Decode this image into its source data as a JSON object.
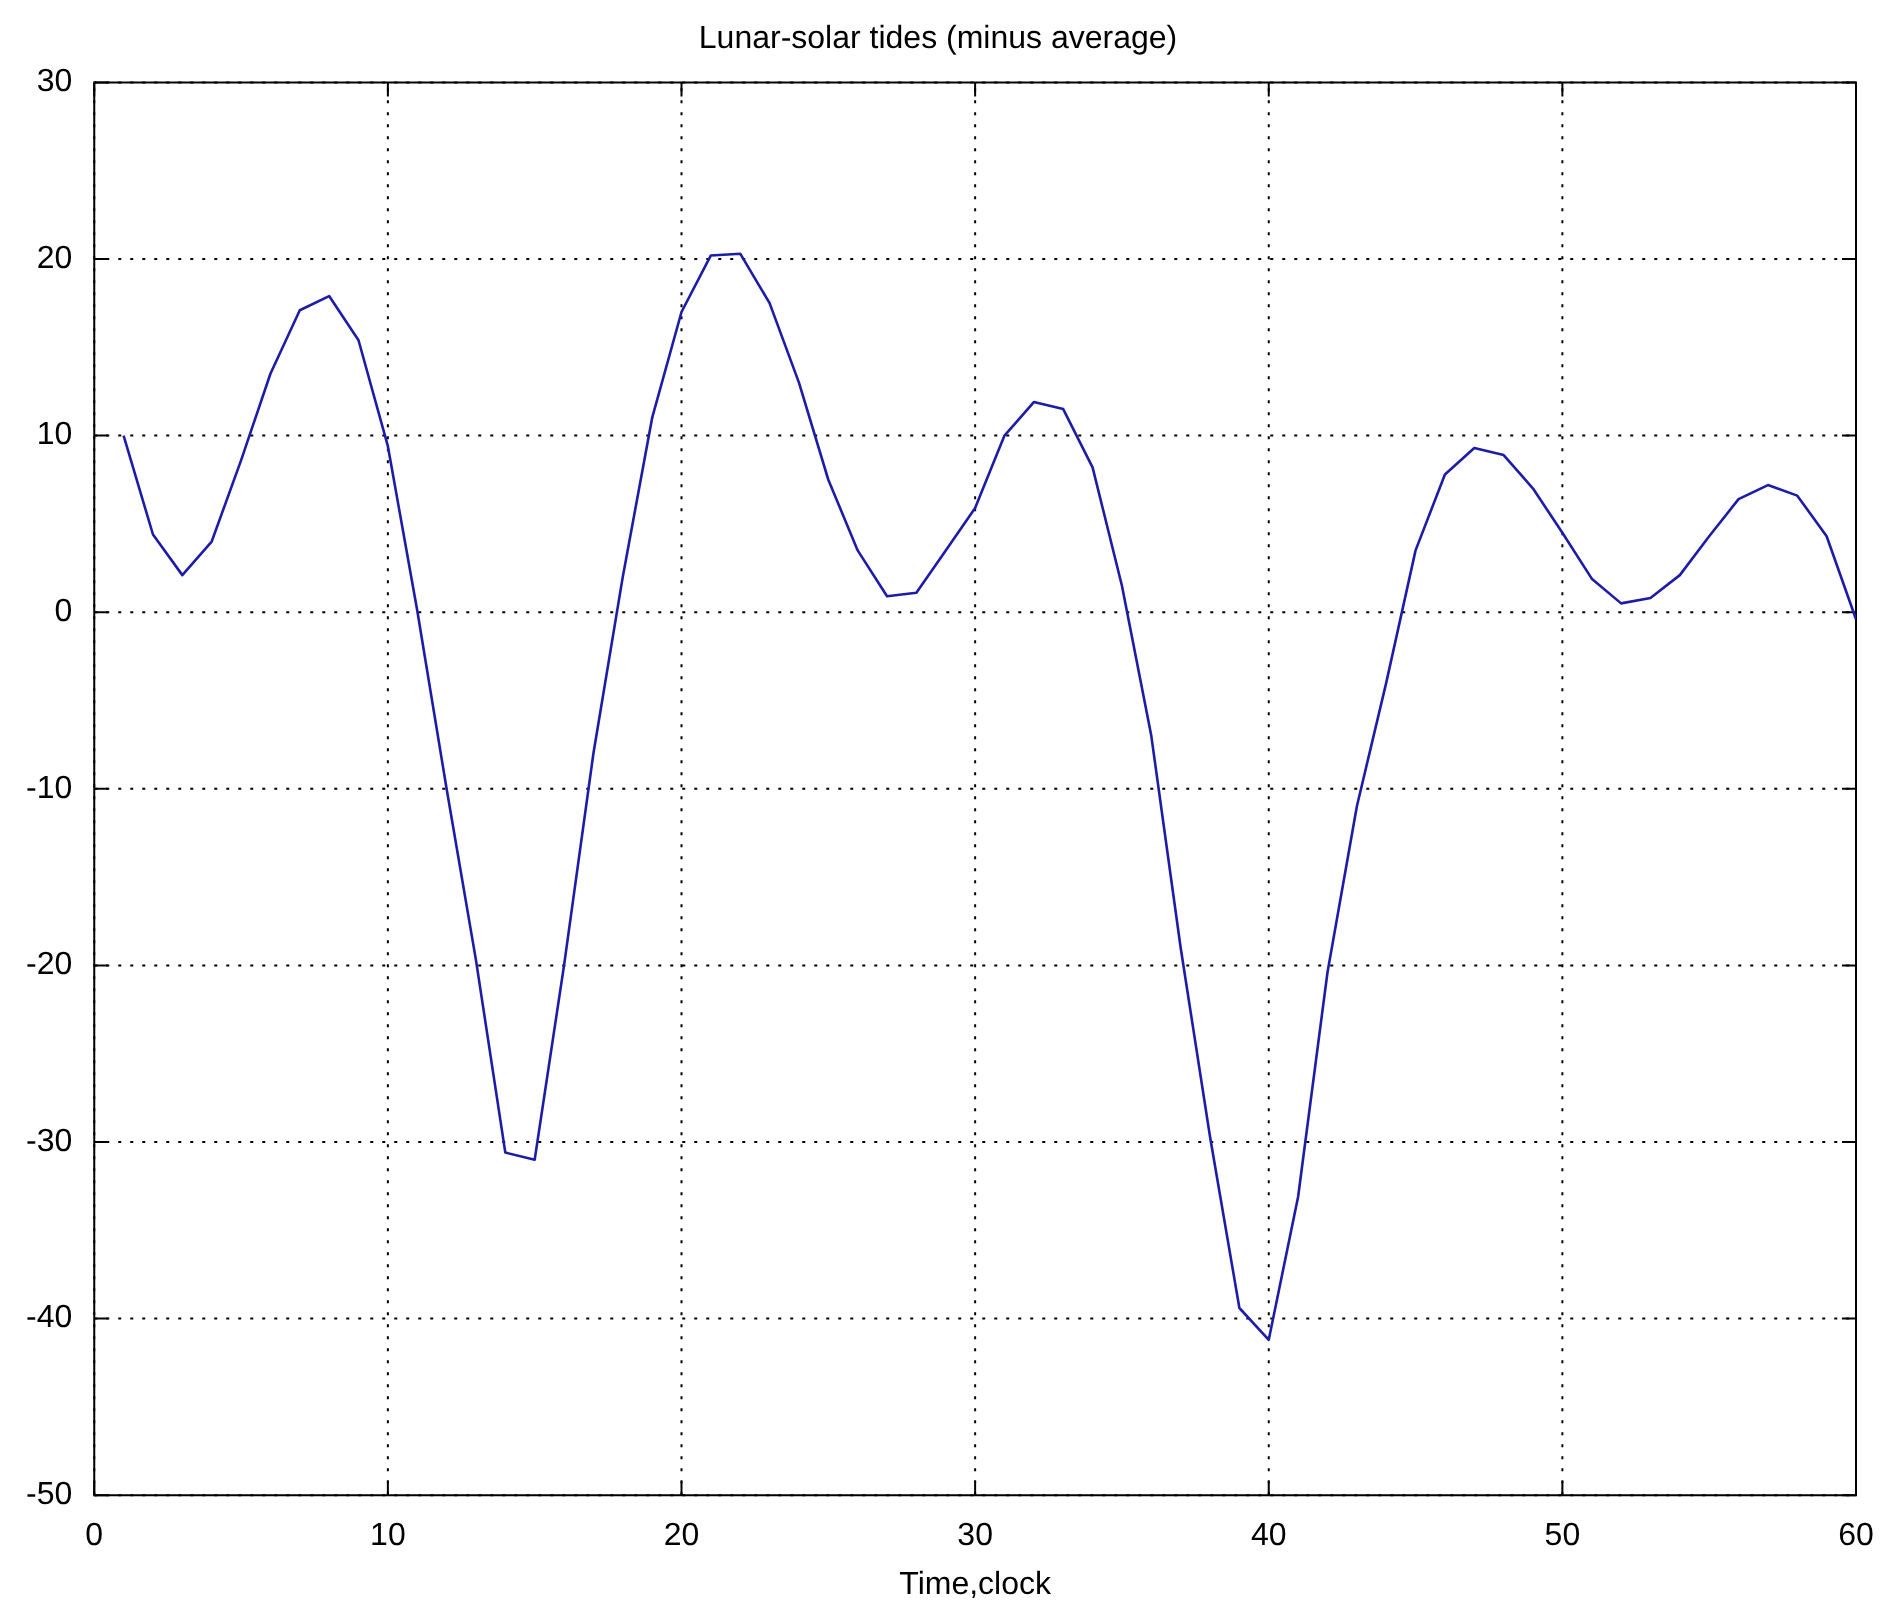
{
  "chart_data": {
    "type": "line",
    "title": "Lunar-solar tides (minus average)",
    "xlabel": "Time,clock",
    "x": [
      1,
      2,
      3,
      4,
      5,
      6,
      7,
      8,
      9,
      10,
      11,
      12,
      13,
      14,
      15,
      16,
      17,
      18,
      19,
      20,
      21,
      22,
      23,
      24,
      25,
      26,
      27,
      28,
      29,
      30,
      31,
      32,
      33,
      34,
      35,
      36,
      37,
      38,
      39,
      40,
      41,
      42,
      43,
      44,
      45,
      46,
      47,
      48,
      49,
      50,
      51,
      52,
      53,
      54,
      55,
      56,
      57,
      58,
      59,
      60
    ],
    "series": [
      {
        "color": "#1c1ca8",
        "values": [
          10,
          4.4,
          2.1,
          4,
          8.6,
          13.5,
          17.1,
          17.9,
          15.4,
          9.4,
          0.1,
          -10,
          -19.7,
          -30.6,
          -31,
          -20,
          -8,
          2,
          11,
          17,
          20.2,
          20.3,
          17.5,
          13,
          7.5,
          3.5,
          0.9,
          1.1,
          3.5,
          5.9,
          10,
          11.9,
          11.5,
          8.2,
          1.5,
          -7,
          -19,
          -29.7,
          -39.4,
          -41.2,
          -33.1,
          -20.4,
          -11,
          -4,
          3.5,
          7.8,
          9.3,
          8.9,
          7,
          4.5,
          1.9,
          0.5,
          0.8,
          2.1,
          4.3,
          6.4,
          7.2,
          6.6,
          4.3,
          -0.4
        ]
      }
    ],
    "xlim": [
      0,
      60
    ],
    "xticks": [
      0,
      10,
      20,
      30,
      40,
      50,
      60
    ],
    "ylim": [
      -50,
      30
    ],
    "yticks": [
      -50,
      -40,
      -30,
      -20,
      -10,
      0,
      10,
      20,
      30
    ],
    "grid": true,
    "legend": false,
    "marker": "none",
    "line_style": "solid"
  }
}
